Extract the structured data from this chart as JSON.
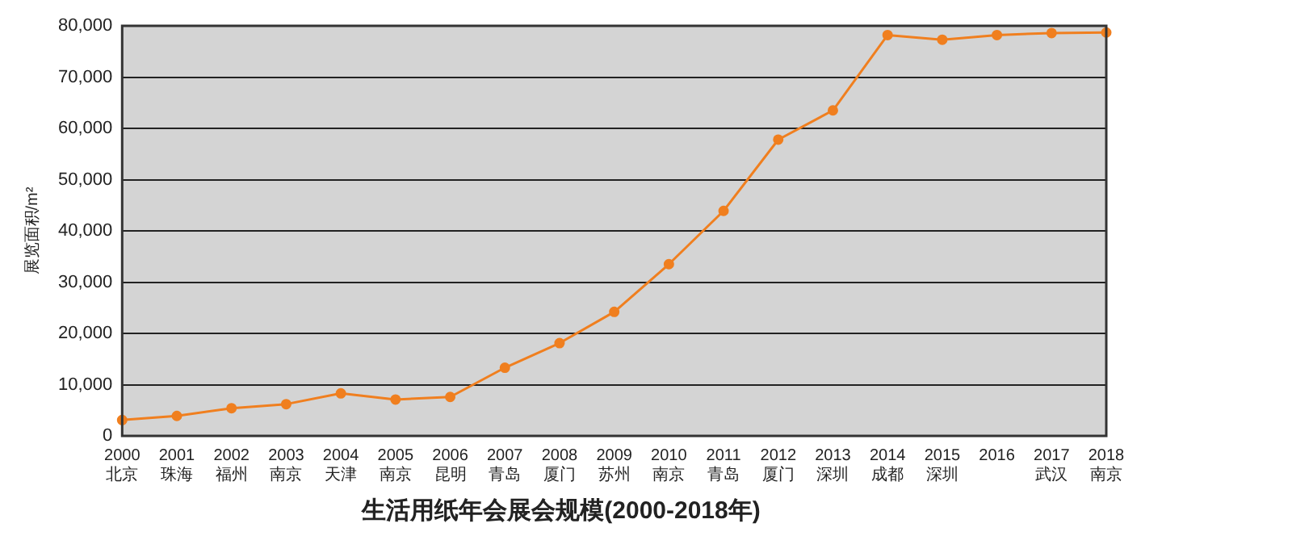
{
  "chart_data": {
    "type": "line",
    "title": "生活用纸年会展会规模(2000-2018年)",
    "ylabel": "展览面积/m²",
    "categories": [
      "2000\n北京",
      "2001\n珠海",
      "2002\n福州",
      "2003\n南京",
      "2004\n天津",
      "2005\n南京",
      "2006\n昆明",
      "2007\n青岛",
      "2008\n厦门",
      "2009\n苏州",
      "2010\n南京",
      "2011\n青岛",
      "2012\n厦门",
      "2013\n深圳",
      "2014\n成都",
      "2015\n深圳",
      "2016",
      "2017\n武汉",
      "2018\n南京"
    ],
    "series": [
      {
        "color": "#f07f1f",
        "values": [
          3100,
          3900,
          5400,
          6200,
          8300,
          7100,
          7600,
          13300,
          18100,
          24200,
          33500,
          43900,
          57800,
          63500,
          78200,
          77300,
          78200,
          78600,
          78700
        ]
      }
    ],
    "ylim": [
      0,
      80000
    ],
    "yticks": [
      {
        "value": 0,
        "label": "0"
      },
      {
        "value": 10000,
        "label": "10,000"
      },
      {
        "value": 20000,
        "label": "20,000"
      },
      {
        "value": 30000,
        "label": "30,000"
      },
      {
        "value": 40000,
        "label": "40,000"
      },
      {
        "value": 50000,
        "label": "50,000"
      },
      {
        "value": 60000,
        "label": "60,000"
      },
      {
        "value": 70000,
        "label": "70,000"
      },
      {
        "value": 80000,
        "label": "80,000"
      }
    ],
    "grid": "y",
    "legend": false,
    "marker": "circle",
    "line_style": "solid"
  }
}
